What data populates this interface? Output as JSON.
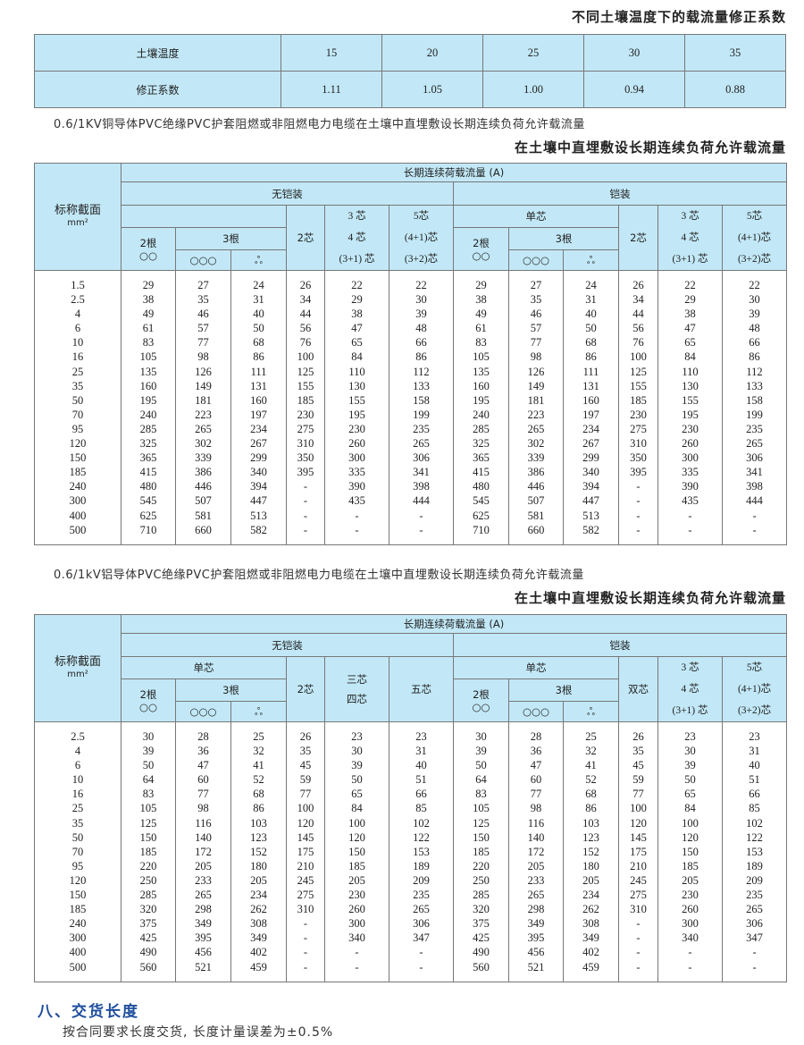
{
  "temp_table": {
    "title": "不同土壤温度下的载流量修正系数",
    "row_labels": [
      "土壤温度",
      "修正系数"
    ],
    "temperatures": [
      "15",
      "20",
      "25",
      "30",
      "35"
    ],
    "factors": [
      "1.11",
      "1.05",
      "1.00",
      "0.94",
      "0.88"
    ]
  },
  "table1": {
    "caption": "0.6/1KV铜导体PVC绝缘PVC护套阻燃或非阻燃电力电缆在土壤中直埋敷设长期连续负荷允许载流量",
    "title": "在土壤中直埋敷设长期连续负荷允许载流量",
    "header": {
      "section": "标称截面",
      "unit": "mm²",
      "main": "长期连续荷载流量 (A)",
      "unarmoured": "无铠装",
      "armoured": "铠装",
      "single_core_blank": "",
      "single_core": "单芯",
      "two_roots": "2根",
      "two_roots_sym": "○○",
      "three_roots": "3根",
      "flat_sym": "○○○",
      "trefoil_sym": "ஃ",
      "two_core": "2芯",
      "three_core": "3 芯",
      "four_core": "4 芯",
      "three_plus_one": "(3+1) 芯",
      "five_core": "5芯",
      "four_plus_one": "(4+1)芯",
      "three_plus_two": "(3+2)芯"
    },
    "rows": [
      [
        "1.5",
        "29",
        "27",
        "24",
        "26",
        "22",
        "22",
        "29",
        "27",
        "24",
        "26",
        "22",
        "22"
      ],
      [
        "2.5",
        "38",
        "35",
        "31",
        "34",
        "29",
        "30",
        "38",
        "35",
        "31",
        "34",
        "29",
        "30"
      ],
      [
        "4",
        "49",
        "46",
        "40",
        "44",
        "38",
        "39",
        "49",
        "46",
        "40",
        "44",
        "38",
        "39"
      ],
      [
        "6",
        "61",
        "57",
        "50",
        "56",
        "47",
        "48",
        "61",
        "57",
        "50",
        "56",
        "47",
        "48"
      ],
      [
        "10",
        "83",
        "77",
        "68",
        "76",
        "65",
        "66",
        "83",
        "77",
        "68",
        "76",
        "65",
        "66"
      ],
      [
        "16",
        "105",
        "98",
        "86",
        "100",
        "84",
        "86",
        "105",
        "98",
        "86",
        "100",
        "84",
        "86"
      ],
      [
        "25",
        "135",
        "126",
        "111",
        "125",
        "110",
        "112",
        "135",
        "126",
        "111",
        "125",
        "110",
        "112"
      ],
      [
        "35",
        "160",
        "149",
        "131",
        "155",
        "130",
        "133",
        "160",
        "149",
        "131",
        "155",
        "130",
        "133"
      ],
      [
        "50",
        "195",
        "181",
        "160",
        "185",
        "155",
        "158",
        "195",
        "181",
        "160",
        "185",
        "155",
        "158"
      ],
      [
        "70",
        "240",
        "223",
        "197",
        "230",
        "195",
        "199",
        "240",
        "223",
        "197",
        "230",
        "195",
        "199"
      ],
      [
        "95",
        "285",
        "265",
        "234",
        "275",
        "230",
        "235",
        "285",
        "265",
        "234",
        "275",
        "230",
        "235"
      ],
      [
        "120",
        "325",
        "302",
        "267",
        "310",
        "260",
        "265",
        "325",
        "302",
        "267",
        "310",
        "260",
        "265"
      ],
      [
        "150",
        "365",
        "339",
        "299",
        "350",
        "300",
        "306",
        "365",
        "339",
        "299",
        "350",
        "300",
        "306"
      ],
      [
        "185",
        "415",
        "386",
        "340",
        "395",
        "335",
        "341",
        "415",
        "386",
        "340",
        "395",
        "335",
        "341"
      ],
      [
        "240",
        "480",
        "446",
        "394",
        "-",
        "390",
        "398",
        "480",
        "446",
        "394",
        "-",
        "390",
        "398"
      ],
      [
        "300",
        "545",
        "507",
        "447",
        "-",
        "435",
        "444",
        "545",
        "507",
        "447",
        "-",
        "435",
        "444"
      ],
      [
        "400",
        "625",
        "581",
        "513",
        "-",
        "-",
        "-",
        "625",
        "581",
        "513",
        "-",
        "-",
        "-"
      ],
      [
        "500",
        "710",
        "660",
        "582",
        "-",
        "-",
        "-",
        "710",
        "660",
        "582",
        "-",
        "-",
        "-"
      ]
    ]
  },
  "table2": {
    "caption": "0.6/1kV铝导体PVC绝缘PVC护套阻燃或非阻燃电力电缆在土壤中直埋敷设长期连续负荷允许载流量",
    "title": "在土壤中直埋敷设长期连续负荷允许载流量",
    "header": {
      "section": "标称截面",
      "unit": "mm²",
      "main": "长期连续荷载流量 (A)",
      "unarmoured": "无铠装",
      "armoured": "铠装",
      "single_core": "单芯",
      "two_roots": "2根",
      "two_roots_sym": "○○",
      "three_roots": "3根",
      "flat_sym": "○○○",
      "trefoil_sym": "ஃ",
      "two_core": "2芯",
      "three_four_core_a": "三芯",
      "three_four_core_b": "四芯",
      "five_core_cn": "五芯",
      "double_core": "双芯",
      "three_core": "3 芯",
      "four_core": "4 芯",
      "three_plus_one": "(3+1) 芯",
      "five_core": "5芯",
      "four_plus_one": "(4+1)芯",
      "three_plus_two": "(3+2)芯"
    },
    "rows": [
      [
        "2.5",
        "30",
        "28",
        "25",
        "26",
        "23",
        "23",
        "30",
        "28",
        "25",
        "26",
        "23",
        "23"
      ],
      [
        "4",
        "39",
        "36",
        "32",
        "35",
        "30",
        "31",
        "39",
        "36",
        "32",
        "35",
        "30",
        "31"
      ],
      [
        "6",
        "50",
        "47",
        "41",
        "45",
        "39",
        "40",
        "50",
        "47",
        "41",
        "45",
        "39",
        "40"
      ],
      [
        "10",
        "64",
        "60",
        "52",
        "59",
        "50",
        "51",
        "64",
        "60",
        "52",
        "59",
        "50",
        "51"
      ],
      [
        "16",
        "83",
        "77",
        "68",
        "77",
        "65",
        "66",
        "83",
        "77",
        "68",
        "77",
        "65",
        "66"
      ],
      [
        "25",
        "105",
        "98",
        "86",
        "100",
        "84",
        "85",
        "105",
        "98",
        "86",
        "100",
        "84",
        "85"
      ],
      [
        "35",
        "125",
        "116",
        "103",
        "120",
        "100",
        "102",
        "125",
        "116",
        "103",
        "120",
        "100",
        "102"
      ],
      [
        "50",
        "150",
        "140",
        "123",
        "145",
        "120",
        "122",
        "150",
        "140",
        "123",
        "145",
        "120",
        "122"
      ],
      [
        "70",
        "185",
        "172",
        "152",
        "175",
        "150",
        "153",
        "185",
        "172",
        "152",
        "175",
        "150",
        "153"
      ],
      [
        "95",
        "220",
        "205",
        "180",
        "210",
        "185",
        "189",
        "220",
        "205",
        "180",
        "210",
        "185",
        "189"
      ],
      [
        "120",
        "250",
        "233",
        "205",
        "245",
        "205",
        "209",
        "250",
        "233",
        "205",
        "245",
        "205",
        "209"
      ],
      [
        "150",
        "285",
        "265",
        "234",
        "275",
        "230",
        "235",
        "285",
        "265",
        "234",
        "275",
        "230",
        "235"
      ],
      [
        "185",
        "320",
        "298",
        "262",
        "310",
        "260",
        "265",
        "320",
        "298",
        "262",
        "310",
        "260",
        "265"
      ],
      [
        "240",
        "375",
        "349",
        "308",
        "-",
        "300",
        "306",
        "375",
        "349",
        "308",
        "-",
        "300",
        "306"
      ],
      [
        "300",
        "425",
        "395",
        "349",
        "-",
        "340",
        "347",
        "425",
        "395",
        "349",
        "-",
        "340",
        "347"
      ],
      [
        "400",
        "490",
        "456",
        "402",
        "-",
        "-",
        "-",
        "490",
        "456",
        "402",
        "-",
        "-",
        "-"
      ],
      [
        "500",
        "560",
        "521",
        "459",
        "-",
        "-",
        "-",
        "560",
        "521",
        "459",
        "-",
        "-",
        "-"
      ]
    ]
  },
  "delivery": {
    "heading": "八、交货长度",
    "text": "按合同要求长度交货, 长度计量误差为±0.5%"
  },
  "colors": {
    "header_bg": "#c2e8f7",
    "heading_blue": "#1f4e9c"
  }
}
